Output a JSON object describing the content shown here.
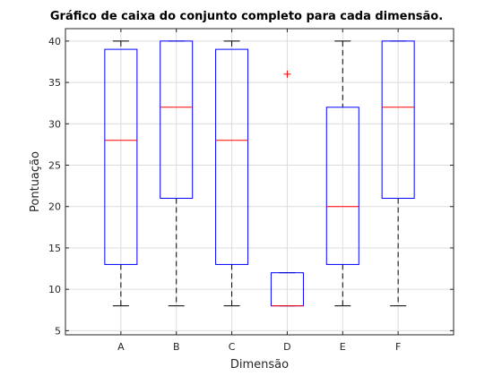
{
  "chart_data": {
    "type": "boxplot",
    "title": "Gráfico de caixa do conjunto completo para cada dimensão.",
    "xlabel": "Dimensão",
    "ylabel": "Pontuação",
    "ylim": [
      4.5,
      41.5
    ],
    "yticks": [
      5,
      10,
      15,
      20,
      25,
      30,
      35,
      40
    ],
    "grid": true,
    "colors": {
      "box": "#0000ff",
      "median": "#ff0000",
      "whisker": "#000000",
      "outlier": "#ff0000"
    },
    "categories": [
      "A",
      "B",
      "C",
      "D",
      "E",
      "F"
    ],
    "boxes": [
      {
        "category": "A",
        "whisker_low": 8,
        "q1": 13,
        "median": 28,
        "q3": 39,
        "whisker_high": 40,
        "outliers": []
      },
      {
        "category": "B",
        "whisker_low": 8,
        "q1": 21,
        "median": 32,
        "q3": 40,
        "whisker_high": 40,
        "outliers": []
      },
      {
        "category": "C",
        "whisker_low": 8,
        "q1": 13,
        "median": 28,
        "q3": 39,
        "whisker_high": 40,
        "outliers": []
      },
      {
        "category": "D",
        "whisker_low": 8,
        "q1": 8,
        "median": 8,
        "q3": 12,
        "whisker_high": 12,
        "outliers": [
          36
        ]
      },
      {
        "category": "E",
        "whisker_low": 8,
        "q1": 13,
        "median": 20,
        "q3": 32,
        "whisker_high": 40,
        "outliers": []
      },
      {
        "category": "F",
        "whisker_low": 8,
        "q1": 21,
        "median": 32,
        "q3": 40,
        "whisker_high": 40,
        "outliers": []
      }
    ]
  }
}
